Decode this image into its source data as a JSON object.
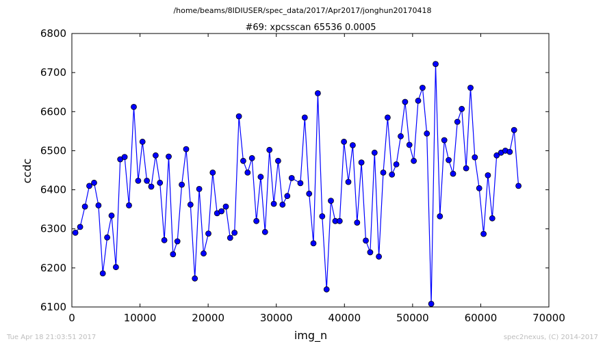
{
  "header": {
    "path": "/home/beams/8IDIUSER/spec_data/2017/Apr2017/jonghun20170418"
  },
  "footer": {
    "timestamp": "Tue Apr 18 21:03:51 2017",
    "credit": "spec2nexus, (C) 2014-2017"
  },
  "chart_data": {
    "type": "line",
    "title": "#69: xpcsscan 65536 0.0005",
    "xlabel": "img_n",
    "ylabel": "ccdc",
    "xlim": [
      0,
      70000
    ],
    "ylim": [
      6100,
      6800
    ],
    "xticks": [
      0,
      10000,
      20000,
      30000,
      40000,
      50000,
      60000,
      70000
    ],
    "yticks": [
      6100,
      6200,
      6300,
      6400,
      6500,
      6600,
      6700,
      6800
    ],
    "grid": false,
    "marker": "circle",
    "color": "#0000ff",
    "series": [
      {
        "x": [
          512,
          1216,
          1920,
          2560,
          3264,
          3904,
          4544,
          5184,
          5824,
          6464,
          7104,
          7744,
          8384,
          9088,
          9728,
          10368,
          11008,
          11648,
          12288,
          12928,
          13568,
          14208,
          14848,
          15488,
          16128,
          16768,
          17408,
          18048,
          18688,
          19328,
          20032,
          20672,
          21312,
          21952,
          22592,
          23232,
          23872,
          24512,
          25152,
          25792,
          26432,
          27072,
          27712,
          28352,
          28992,
          29632,
          30272,
          30912,
          31616,
          32256,
          33536,
          34176,
          34816,
          35456,
          36096,
          36736,
          37376,
          38016,
          38656,
          39296,
          39936,
          40576,
          41216,
          41856,
          42496,
          43136,
          43776,
          44416,
          45056,
          45696,
          46336,
          46976,
          47616,
          48256,
          48896,
          49536,
          50176,
          50816,
          51456,
          52096,
          52736,
          53376,
          54016,
          54656,
          55296,
          55936,
          56576,
          57216,
          57856,
          58496,
          59136,
          59776,
          60416,
          61056,
          61696,
          62336,
          62976,
          63616,
          64256,
          64896,
          65536
        ],
        "y": [
          6290,
          6305,
          6357,
          6410,
          6418,
          6360,
          6186,
          6278,
          6334,
          6202,
          6478,
          6484,
          6360,
          6612,
          6423,
          6523,
          6423,
          6408,
          6488,
          6418,
          6271,
          6485,
          6235,
          6268,
          6413,
          6504,
          6362,
          6173,
          6402,
          6237,
          6288,
          6444,
          6340,
          6345,
          6357,
          6277,
          6290,
          6588,
          6474,
          6444,
          6481,
          6320,
          6433,
          6292,
          6502,
          6364,
          6474,
          6362,
          6384,
          6430,
          6417,
          6585,
          6390,
          6263,
          6647,
          6332,
          6145,
          6372,
          6320,
          6320,
          6523,
          6420,
          6514,
          6316,
          6470,
          6270,
          6240,
          6495,
          6229,
          6444,
          6585,
          6439,
          6465,
          6537,
          6625,
          6515,
          6474,
          6628,
          6661,
          6544,
          6108,
          6722,
          6332,
          6527,
          6476,
          6441,
          6574,
          6607,
          6455,
          6661,
          6483,
          6404,
          6287,
          6437,
          6327,
          6488,
          6495,
          6500,
          6497,
          6553,
          6410
        ]
      }
    ]
  }
}
